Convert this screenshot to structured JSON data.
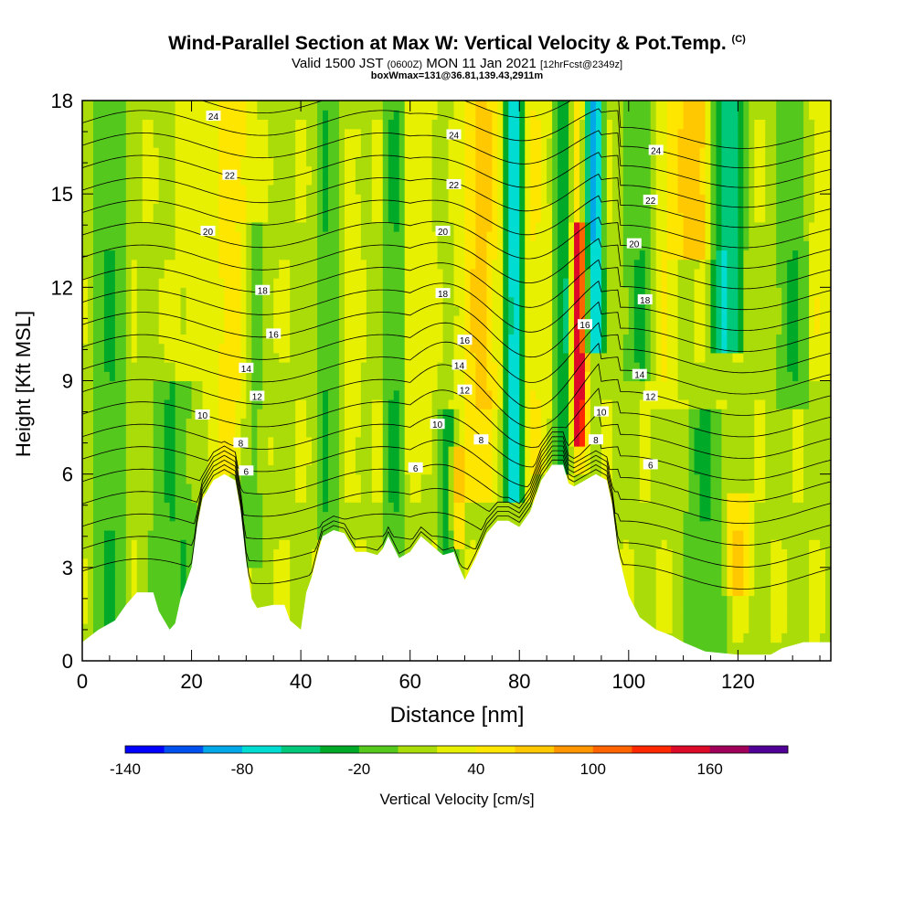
{
  "header": {
    "title": "Wind-Parallel Section at Max W: Vertical Velocity & Pot.Temp.",
    "title_mark": "(C)",
    "valid_prefix": "Valid 1500 JST",
    "valid_utc": "(0600Z)",
    "valid_date": "MON 11 Jan 2021",
    "forecast": "[12hrFcst@2349z]",
    "box_info": "boxWmax=131@36.81,139.43,2911m"
  },
  "chart_data": {
    "type": "heatmap",
    "xlabel": "Distance [nm]",
    "ylabel": "Height [Kft MSL]",
    "xlim": [
      0,
      137
    ],
    "ylim": [
      0,
      18
    ],
    "x_ticks": [
      0,
      20,
      40,
      60,
      80,
      100,
      120
    ],
    "y_ticks": [
      0,
      3,
      6,
      9,
      12,
      15,
      18
    ],
    "grid": false,
    "colorbar": {
      "label": "Vertical Velocity [cm/s]",
      "placement": "bottom",
      "tick_values": [
        -140,
        -80,
        -20,
        40,
        100,
        160
      ],
      "levels": [
        -140,
        -120,
        -100,
        -80,
        -60,
        -40,
        -20,
        0,
        20,
        40,
        60,
        80,
        100,
        120,
        140,
        160,
        180
      ],
      "colors": [
        "#0000ff",
        "#0050f0",
        "#00a8e8",
        "#00dcd2",
        "#00c87a",
        "#00aa28",
        "#55c81e",
        "#aadc0a",
        "#e6f000",
        "#ffe600",
        "#ffc800",
        "#ff9600",
        "#ff6400",
        "#ff2800",
        "#dc0a28",
        "#a0005a",
        "#500096"
      ]
    },
    "terrain_kft": [
      [
        0,
        0.6
      ],
      [
        3,
        1.0
      ],
      [
        6,
        1.3
      ],
      [
        8,
        1.8
      ],
      [
        10,
        2.2
      ],
      [
        13,
        2.2
      ],
      [
        14,
        1.6
      ],
      [
        16,
        1.0
      ],
      [
        17,
        1.2
      ],
      [
        18,
        2.0
      ],
      [
        20,
        3.0
      ],
      [
        21,
        4.3
      ],
      [
        22,
        5.2
      ],
      [
        24,
        5.8
      ],
      [
        26,
        6.0
      ],
      [
        28,
        5.8
      ],
      [
        29,
        4.8
      ],
      [
        30,
        3.2
      ],
      [
        31,
        2.0
      ],
      [
        32,
        1.7
      ],
      [
        35,
        1.8
      ],
      [
        37,
        1.8
      ],
      [
        38,
        1.3
      ],
      [
        40,
        1.0
      ],
      [
        41,
        2.2
      ],
      [
        42,
        2.7
      ],
      [
        43,
        3.4
      ],
      [
        44,
        4.0
      ],
      [
        46,
        4.2
      ],
      [
        48,
        4.1
      ],
      [
        50,
        3.5
      ],
      [
        52,
        3.5
      ],
      [
        54,
        3.4
      ],
      [
        55,
        3.6
      ],
      [
        56,
        4.0
      ],
      [
        58,
        3.3
      ],
      [
        60,
        3.5
      ],
      [
        62,
        4.0
      ],
      [
        64,
        3.7
      ],
      [
        66,
        3.4
      ],
      [
        68,
        3.5
      ],
      [
        69,
        3.0
      ],
      [
        70,
        2.6
      ],
      [
        72,
        3.3
      ],
      [
        74,
        4.1
      ],
      [
        76,
        4.5
      ],
      [
        78,
        4.5
      ],
      [
        80,
        4.3
      ],
      [
        82,
        4.8
      ],
      [
        84,
        5.8
      ],
      [
        86,
        6.3
      ],
      [
        88,
        6.3
      ],
      [
        89,
        5.7
      ],
      [
        90,
        5.6
      ],
      [
        92,
        5.8
      ],
      [
        94,
        6.0
      ],
      [
        96,
        5.8
      ],
      [
        97,
        5.0
      ],
      [
        98,
        3.6
      ],
      [
        99,
        2.8
      ],
      [
        100,
        2.1
      ],
      [
        102,
        1.4
      ],
      [
        105,
        1.0
      ],
      [
        108,
        0.8
      ],
      [
        110,
        0.6
      ],
      [
        114,
        0.3
      ],
      [
        120,
        0.2
      ],
      [
        126,
        0.2
      ],
      [
        128,
        0.4
      ],
      [
        132,
        0.6
      ],
      [
        137,
        0.6
      ]
    ],
    "w_features": [
      {
        "x": 5,
        "w": 4,
        "v": -20,
        "z": [
          0,
          18
        ]
      },
      {
        "x": 17,
        "w": 6,
        "v": -20,
        "z": [
          1,
          9
        ]
      },
      {
        "x": 22,
        "w": 5,
        "v": 30,
        "z": [
          5,
          18
        ]
      },
      {
        "x": 28,
        "w": 4,
        "v": 50,
        "z": [
          6,
          18
        ]
      },
      {
        "x": 31,
        "w": 3,
        "v": -10,
        "z": [
          3,
          14
        ]
      },
      {
        "x": 45,
        "w": 3,
        "v": -20,
        "z": [
          4,
          18
        ]
      },
      {
        "x": 49,
        "w": 2,
        "v": 35,
        "z": [
          5,
          17
        ]
      },
      {
        "x": 57,
        "w": 2.5,
        "v": -20,
        "z": [
          3,
          18
        ]
      },
      {
        "x": 62,
        "w": 3,
        "v": 30,
        "z": [
          6,
          18
        ]
      },
      {
        "x": 67,
        "w": 2,
        "v": -40,
        "z": [
          3,
          8
        ]
      },
      {
        "x": 68.5,
        "w": 1.6,
        "v": 80,
        "z": [
          3.5,
          7
        ]
      },
      {
        "x": 72,
        "w": 4,
        "v": 50,
        "z": [
          5,
          18
        ]
      },
      {
        "x": 74,
        "w": 3,
        "v": 40,
        "z": [
          8,
          18
        ]
      },
      {
        "x": 79,
        "w": 2.2,
        "v": -70,
        "z": [
          5,
          18
        ]
      },
      {
        "x": 83,
        "w": 3,
        "v": 40,
        "z": [
          6,
          18
        ]
      },
      {
        "x": 88,
        "w": 2,
        "v": -40,
        "z": [
          6,
          18
        ]
      },
      {
        "x": 91,
        "w": 1.8,
        "v": 110,
        "z": [
          7,
          14
        ]
      },
      {
        "x": 91,
        "w": 1.8,
        "v": 60,
        "z": [
          6,
          18
        ]
      },
      {
        "x": 93.5,
        "w": 2.5,
        "v": -80,
        "z": [
          10,
          18
        ]
      },
      {
        "x": 102,
        "w": 4,
        "v": -20,
        "z": [
          9,
          18
        ]
      },
      {
        "x": 106,
        "w": 3,
        "v": 40,
        "z": [
          8,
          18
        ]
      },
      {
        "x": 112,
        "w": 5,
        "v": 70,
        "z": [
          13,
          18
        ]
      },
      {
        "x": 118,
        "w": 4,
        "v": -60,
        "z": [
          10,
          18
        ]
      },
      {
        "x": 120,
        "w": 3,
        "v": 60,
        "z": [
          2,
          5.5
        ]
      },
      {
        "x": 114,
        "w": 5,
        "v": -20,
        "z": [
          0,
          8
        ]
      },
      {
        "x": 130,
        "w": 4,
        "v": -20,
        "z": [
          8,
          18
        ]
      },
      {
        "x": 135,
        "w": 3,
        "v": 35,
        "z": [
          9,
          18
        ]
      }
    ],
    "isentrope_labels": [
      {
        "text": "24",
        "x": 24,
        "z": 17.5
      },
      {
        "text": "22",
        "x": 27,
        "z": 15.6
      },
      {
        "text": "20",
        "x": 23,
        "z": 13.8
      },
      {
        "text": "18",
        "x": 33,
        "z": 11.9
      },
      {
        "text": "16",
        "x": 35,
        "z": 10.5
      },
      {
        "text": "14",
        "x": 30,
        "z": 9.4
      },
      {
        "text": "12",
        "x": 32,
        "z": 8.5
      },
      {
        "text": "10",
        "x": 22,
        "z": 7.9
      },
      {
        "text": "8",
        "x": 29,
        "z": 7.0
      },
      {
        "text": "6",
        "x": 30,
        "z": 6.1
      },
      {
        "text": "24",
        "x": 68,
        "z": 16.9
      },
      {
        "text": "22",
        "x": 68,
        "z": 15.3
      },
      {
        "text": "20",
        "x": 66,
        "z": 13.8
      },
      {
        "text": "18",
        "x": 66,
        "z": 11.8
      },
      {
        "text": "16",
        "x": 70,
        "z": 10.3
      },
      {
        "text": "14",
        "x": 69,
        "z": 9.5
      },
      {
        "text": "12",
        "x": 70,
        "z": 8.7
      },
      {
        "text": "10",
        "x": 65,
        "z": 7.6
      },
      {
        "text": "8",
        "x": 73,
        "z": 7.1
      },
      {
        "text": "6",
        "x": 61,
        "z": 6.2
      },
      {
        "text": "24",
        "x": 105,
        "z": 16.4
      },
      {
        "text": "22",
        "x": 104,
        "z": 14.8
      },
      {
        "text": "20",
        "x": 101,
        "z": 13.4
      },
      {
        "text": "18",
        "x": 103,
        "z": 11.6
      },
      {
        "text": "16",
        "x": 92,
        "z": 10.8
      },
      {
        "text": "14",
        "x": 102,
        "z": 9.2
      },
      {
        "text": "12",
        "x": 104,
        "z": 8.5
      },
      {
        "text": "10",
        "x": 95,
        "z": 8.0
      },
      {
        "text": "8",
        "x": 94,
        "z": 7.1
      },
      {
        "text": "6",
        "x": 104,
        "z": 6.3
      }
    ]
  }
}
